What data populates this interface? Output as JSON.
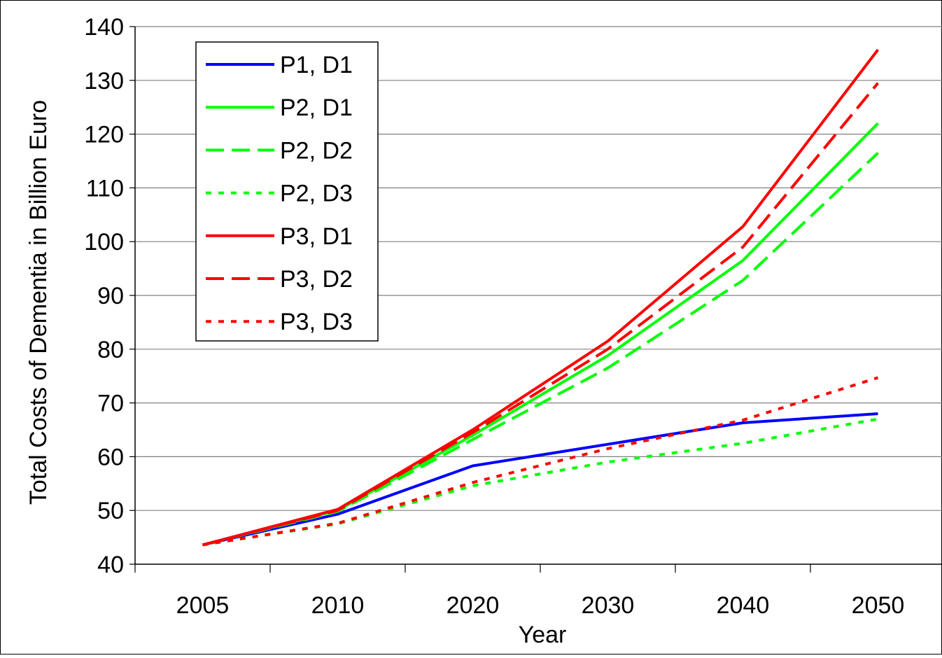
{
  "chart_data": {
    "type": "line",
    "title": "",
    "xlabel": "Year",
    "ylabel": "Total Costs of Dementia in Billion Euro",
    "categories": [
      "2005",
      "2010",
      "2020",
      "2030",
      "2040",
      "2050"
    ],
    "ylim": [
      40,
      140
    ],
    "yticks": [
      "40",
      "50",
      "60",
      "70",
      "80",
      "90",
      "100",
      "110",
      "120",
      "130",
      "140"
    ],
    "grid": "horizontal",
    "legend_position": "top-left",
    "series": [
      {
        "name": "P1, D1",
        "color": "#0000ff",
        "dash": "solid",
        "values": [
          43.6,
          49.3,
          58.3,
          62.3,
          66.3,
          68.0
        ]
      },
      {
        "name": "P2, D1",
        "color": "#00ff00",
        "dash": "solid",
        "values": [
          43.6,
          50.0,
          64.0,
          78.8,
          96.5,
          122.0
        ]
      },
      {
        "name": "P2, D2",
        "color": "#00ff00",
        "dash": "dashed",
        "values": [
          43.6,
          49.8,
          63.2,
          76.5,
          92.8,
          116.5
        ]
      },
      {
        "name": "P2, D3",
        "color": "#00ff00",
        "dash": "dotted",
        "values": [
          43.6,
          47.5,
          54.6,
          59.0,
          62.5,
          67.0
        ]
      },
      {
        "name": "P3, D1",
        "color": "#ff0000",
        "dash": "solid",
        "values": [
          43.6,
          50.2,
          65.0,
          81.5,
          102.8,
          135.7
        ]
      },
      {
        "name": "P3, D2",
        "color": "#ff0000",
        "dash": "dashed",
        "values": [
          43.6,
          50.0,
          64.5,
          80.0,
          99.0,
          129.5
        ]
      },
      {
        "name": "P3, D3",
        "color": "#ff0000",
        "dash": "dotted",
        "values": [
          43.6,
          47.6,
          55.2,
          61.5,
          66.8,
          74.7
        ]
      }
    ]
  }
}
